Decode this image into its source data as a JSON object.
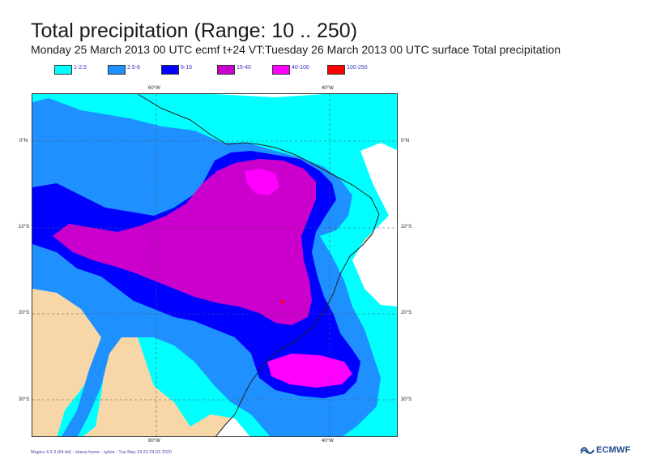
{
  "header": {
    "title": "Total precipitation (Range: 10 .. 250)",
    "subtitle": "Monday 25 March 2013 00 UTC ecmf t+24 VT:Tuesday 26 March 2013 00 UTC surface  Total precipitation"
  },
  "legend": [
    {
      "label": "1-2.5",
      "color": "#00ffff"
    },
    {
      "label": "2.5-6",
      "color": "#1e90ff"
    },
    {
      "label": "6-15",
      "color": "#0000ff"
    },
    {
      "label": "15-40",
      "color": "#cc00cc"
    },
    {
      "label": "40-100",
      "color": "#ff00ff"
    },
    {
      "label": "100-250",
      "color": "#ff0000"
    }
  ],
  "map": {
    "land_color": "#f7d7a8",
    "ocean_color": "#ffffff",
    "lon_ticks": [
      "60°W",
      "40°W"
    ],
    "lat_ticks": [
      "0°N",
      "10°S",
      "20°S",
      "30°S"
    ]
  },
  "footer": {
    "credit": "Magics 4.3.3 (64 bit) - shaun.home - sylvie - Tue May 19 21:24:23 2020",
    "logo_text": "ECMWF"
  }
}
